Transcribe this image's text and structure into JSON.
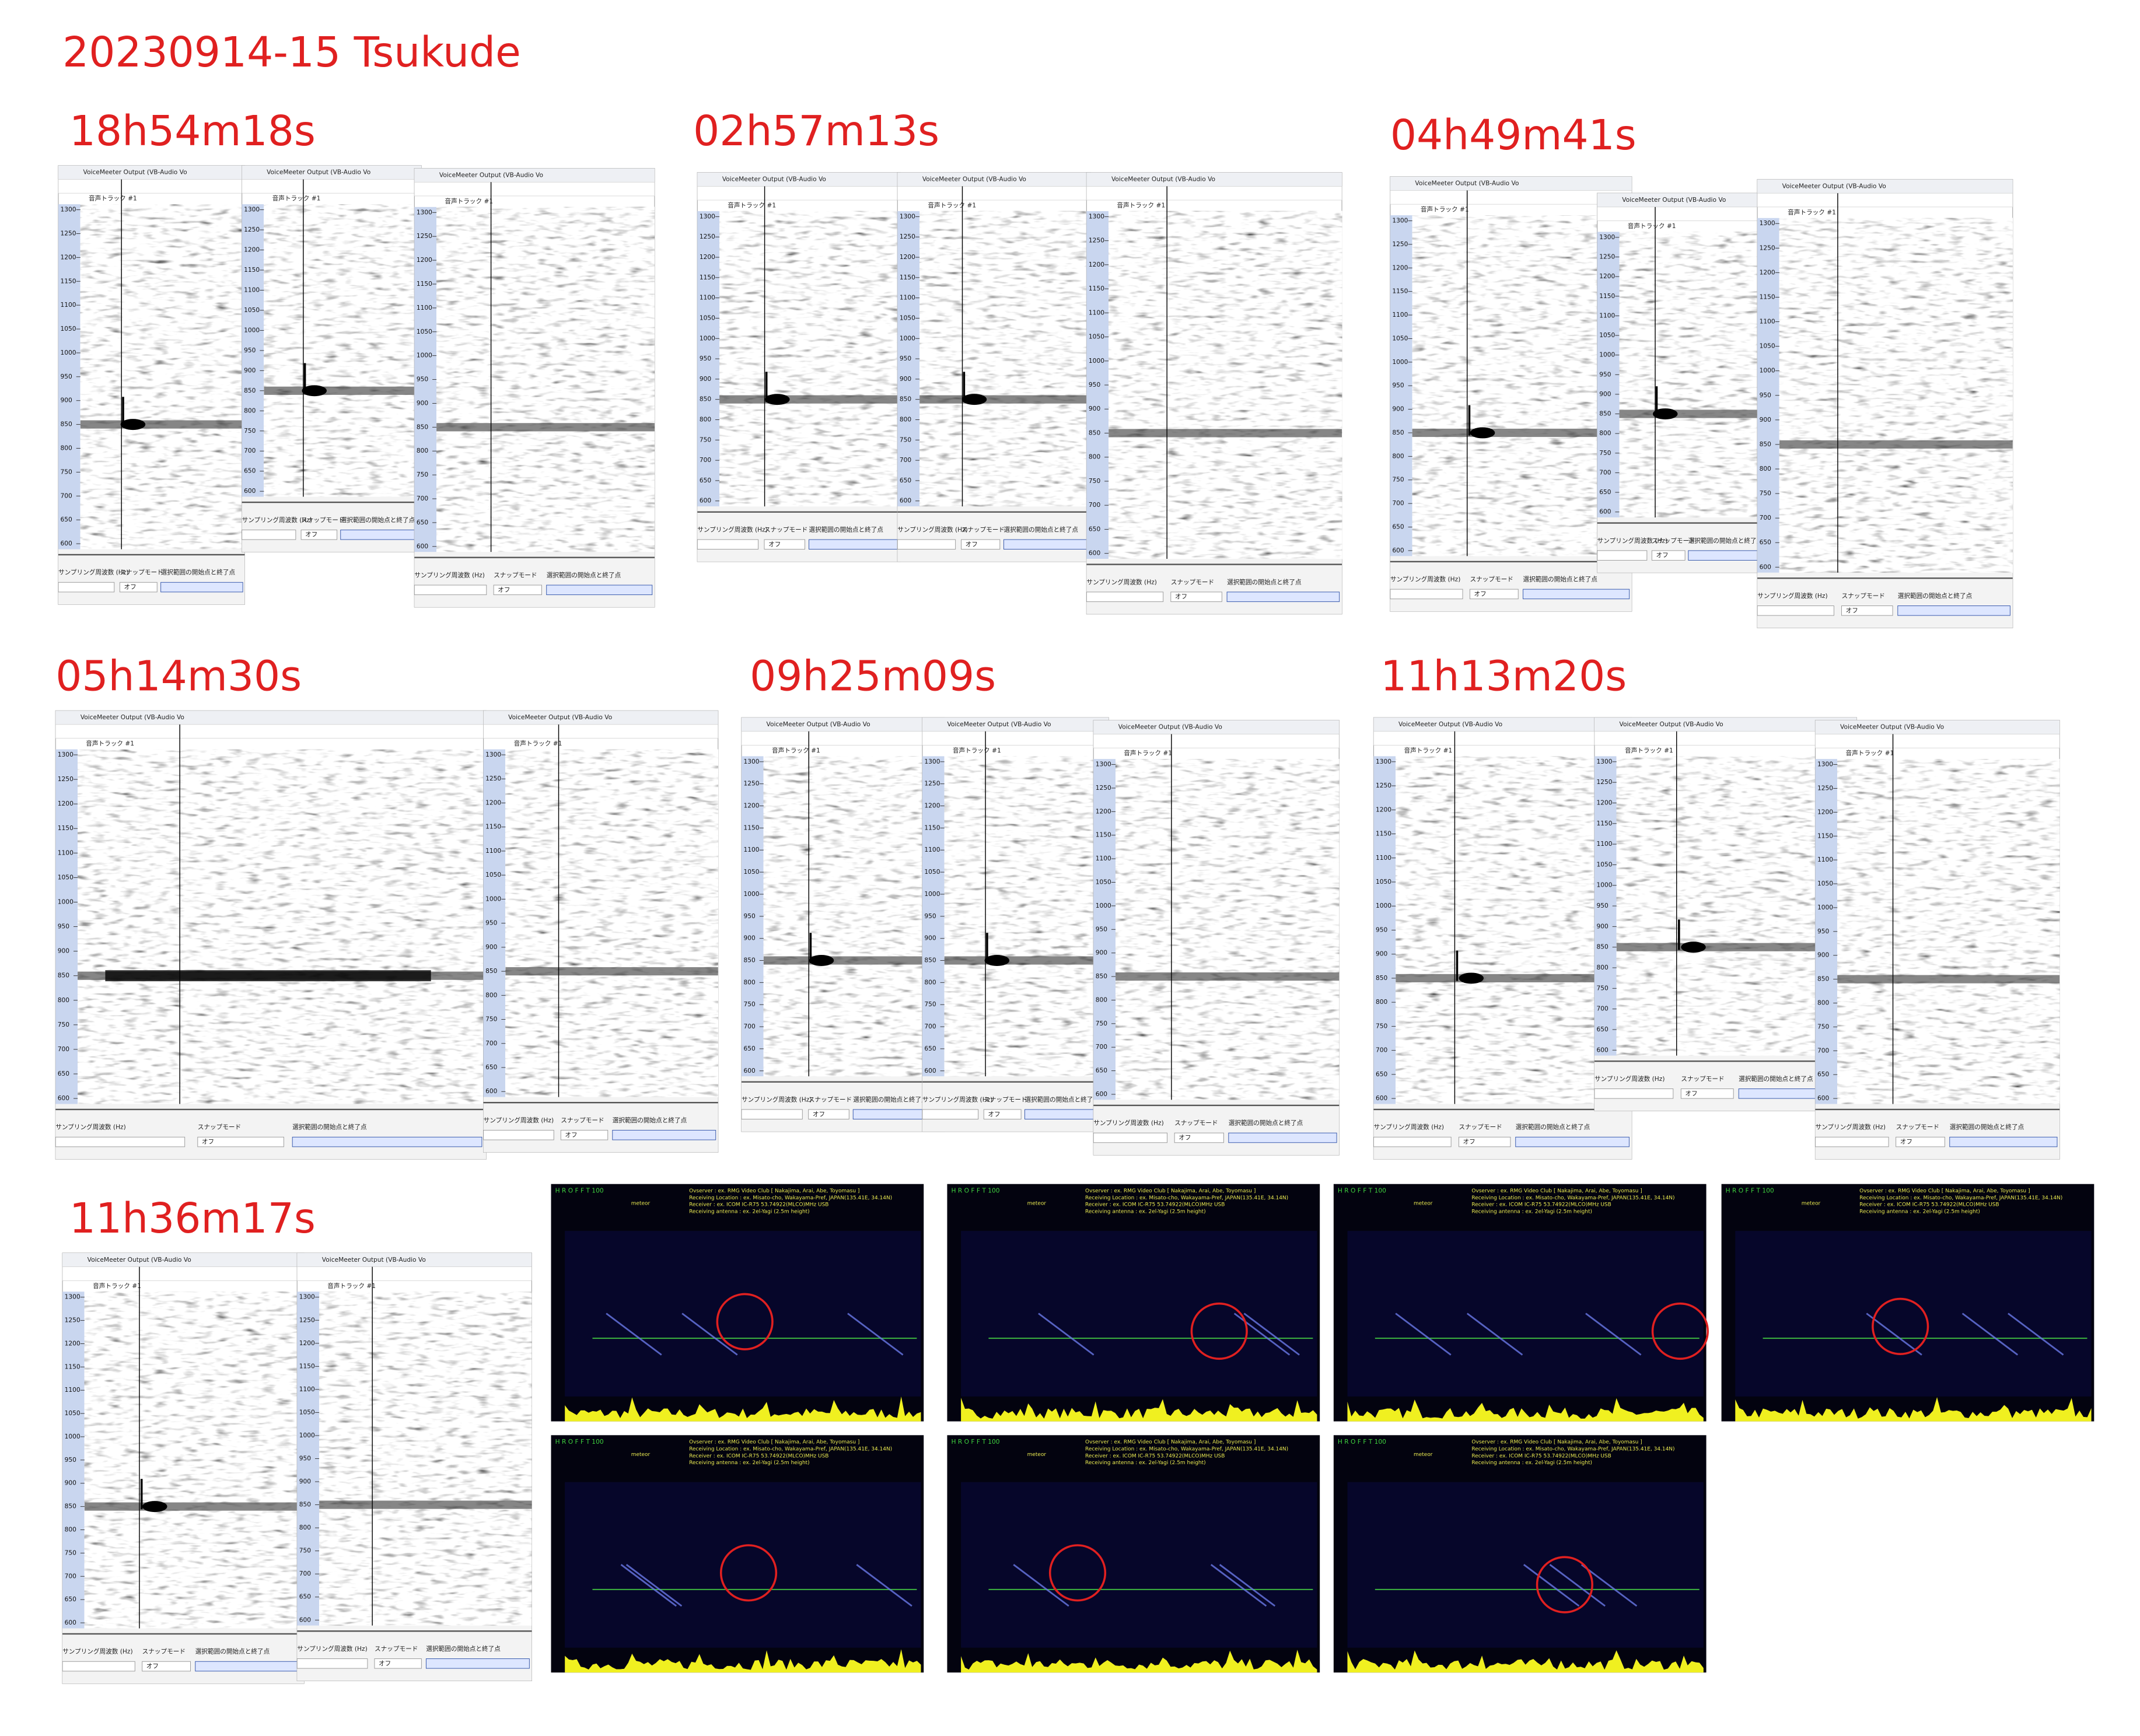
{
  "title": "20230914-15  Tsukude",
  "events": [
    {
      "time": "18h54m18s"
    },
    {
      "time": "02h57m13s"
    },
    {
      "time": "04h49m41s"
    },
    {
      "time": "05h14m30s"
    },
    {
      "time": "09h25m09s"
    },
    {
      "time": "11h13m20s"
    },
    {
      "time": "11h36m17s"
    }
  ],
  "spectrogram": {
    "window_label": "VoiceMeeter Output (VB-Audio Vo",
    "track_label": "音声トラック #1",
    "freq_ticks": [
      1300,
      1250,
      1200,
      1150,
      1100,
      1050,
      1000,
      950,
      900,
      850,
      800,
      750,
      700,
      650,
      600
    ],
    "footer_labels": [
      "サンプリング周波数 (Hz)",
      "スナップモード",
      "選択範囲の開始点と終了点"
    ],
    "snap_value": "オフ"
  },
  "hrofft": {
    "header": "H R O F F T  100",
    "lines": [
      "Ovserver          : ex. RMG Video Club [ Nakajima, Arai, Abe, Toyomasu ]",
      "Receiving Location : ex. Misato-cho, Wakayama-Pref, JAPAN(135.41E, 34.14N)",
      "Receiver           : ex. ICOM IC-R75 53.74922(MLCO)MHz USB",
      "Receiving antenna  : ex. 2el-Yagi (2.5m height)"
    ],
    "tag": "meteor"
  }
}
